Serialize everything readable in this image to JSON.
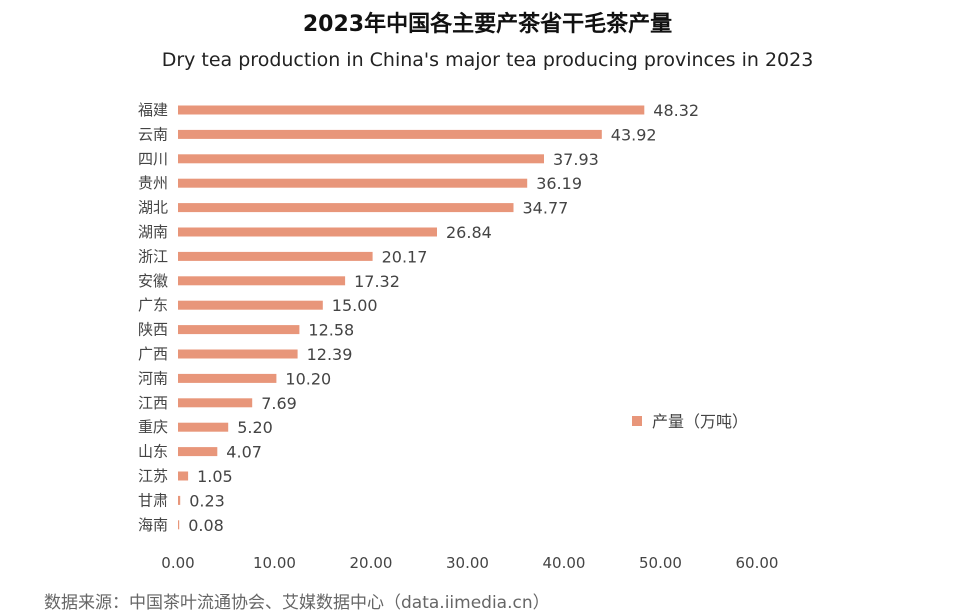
{
  "chart_data": {
    "type": "bar",
    "orientation": "horizontal",
    "title": "2023年中国各主要产茶省干毛茶产量",
    "subtitle": "Dry tea production in China's major tea producing provinces in 2023",
    "categories": [
      "福建",
      "云南",
      "四川",
      "贵州",
      "湖北",
      "湖南",
      "浙江",
      "安徽",
      "广东",
      "陕西",
      "广西",
      "河南",
      "江西",
      "重庆",
      "山东",
      "江苏",
      "甘肃",
      "海南"
    ],
    "series": [
      {
        "name": "产量（万吨）",
        "values": [
          48.32,
          43.92,
          37.93,
          36.19,
          34.77,
          26.84,
          20.17,
          17.32,
          15.0,
          12.58,
          12.39,
          10.2,
          7.69,
          5.2,
          4.07,
          1.05,
          0.23,
          0.08
        ],
        "value_labels": [
          "48.32",
          "43.92",
          "37.93",
          "36.19",
          "34.77",
          "26.84",
          "20.17",
          "17.32",
          "15.00",
          "12.58",
          "12.39",
          "10.20",
          "7.69",
          "5.20",
          "4.07",
          "1.05",
          "0.23",
          "0.08"
        ]
      }
    ],
    "xlim": [
      0,
      60
    ],
    "x_ticks": [
      "0.00",
      "10.00",
      "20.00",
      "30.00",
      "40.00",
      "50.00",
      "60.00"
    ],
    "grid": false,
    "legend_position": "right",
    "bar_color": "#E8967A"
  },
  "source": "数据来源：中国茶叶流通协会、艾媒数据中心（data.iimedia.cn）"
}
